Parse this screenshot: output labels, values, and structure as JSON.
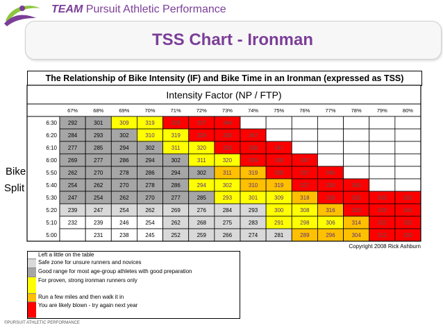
{
  "brand": {
    "team": "TEAM",
    "name": "Pursuit Athletic Performance"
  },
  "title": "TSS Chart - Ironman",
  "side_label": {
    "line1": "Bike",
    "line2": "Split"
  },
  "copyright": "Copyright 2008 Rick Ashburn",
  "footer": "©PURSUIT ATHLETIC PERFORMANCE",
  "colors": {
    "white": "#ffffff",
    "light_gray": "#d9d9d9",
    "gray": "#a6a6a6",
    "yellow": "#ffff00",
    "orange": "#ffc000",
    "red": "#ff0000",
    "brand": "#7b3e98"
  },
  "chart_data": {
    "type": "table",
    "title": "The Relationship of Bike Intensity (IF) and Bike Time in an Ironman (expressed as TSS)",
    "column_header": "Intensity Factor (NP / FTP)",
    "row_header": "Bike Split",
    "columns": [
      "67%",
      "68%",
      "69%",
      "70%",
      "71%",
      "72%",
      "73%",
      "74%",
      "75%",
      "76%",
      "77%",
      "78%",
      "79%",
      "80%"
    ],
    "rows": [
      {
        "time": "6:30",
        "values": [
          292,
          301,
          309,
          319,
          328,
          337,
          346,
          null,
          null,
          null,
          null,
          null,
          null,
          null
        ],
        "colors": [
          "gray",
          "gray",
          "yellow",
          "yellow",
          "red",
          "red",
          "red",
          "white",
          "white",
          "white",
          "white",
          "white",
          "white",
          "white"
        ]
      },
      {
        "time": "6:20",
        "values": [
          284,
          293,
          302,
          310,
          319,
          328,
          338,
          347,
          null,
          null,
          null,
          null,
          null,
          null
        ],
        "colors": [
          "gray",
          "gray",
          "gray",
          "yellow",
          "yellow",
          "red",
          "red",
          "red",
          "white",
          "white",
          "white",
          "white",
          "white",
          "white"
        ]
      },
      {
        "time": "6:10",
        "values": [
          277,
          285,
          294,
          302,
          311,
          320,
          329,
          338,
          347,
          null,
          null,
          null,
          null,
          null
        ],
        "colors": [
          "gray",
          "gray",
          "gray",
          "gray",
          "yellow",
          "yellow",
          "red",
          "red",
          "red",
          "white",
          "white",
          "white",
          "white",
          "white"
        ]
      },
      {
        "time": "6:00",
        "values": [
          269,
          277,
          286,
          294,
          302,
          311,
          320,
          329,
          338,
          347,
          null,
          null,
          null,
          null
        ],
        "colors": [
          "gray",
          "gray",
          "gray",
          "gray",
          "gray",
          "yellow",
          "yellow",
          "red",
          "red",
          "red",
          "white",
          "white",
          "white",
          "white"
        ]
      },
      {
        "time": "5:50",
        "values": [
          262,
          270,
          278,
          286,
          294,
          302,
          311,
          319,
          328,
          337,
          346,
          null,
          null,
          null
        ],
        "colors": [
          "gray",
          "gray",
          "gray",
          "gray",
          "gray",
          "gray",
          "orange",
          "orange",
          "red",
          "red",
          "red",
          "white",
          "white",
          "white"
        ]
      },
      {
        "time": "5:40",
        "values": [
          254,
          262,
          270,
          278,
          286,
          294,
          302,
          310,
          319,
          327,
          336,
          345,
          null,
          null
        ],
        "colors": [
          "gray",
          "gray",
          "gray",
          "gray",
          "gray",
          "yellow",
          "yellow",
          "orange",
          "orange",
          "red",
          "red",
          "red",
          "white",
          "white"
        ]
      },
      {
        "time": "5:30",
        "values": [
          247,
          254,
          262,
          270,
          277,
          285,
          293,
          301,
          309,
          318,
          326,
          335,
          343,
          352
        ],
        "colors": [
          "gray",
          "gray",
          "gray",
          "gray",
          "gray",
          "gray",
          "yellow",
          "yellow",
          "yellow",
          "orange",
          "red",
          "red",
          "red",
          "red"
        ]
      },
      {
        "time": "5:20",
        "values": [
          239,
          247,
          254,
          262,
          269,
          276,
          284,
          293,
          300,
          308,
          316,
          324,
          333,
          341
        ],
        "colors": [
          "light_gray",
          "light_gray",
          "light_gray",
          "light_gray",
          "light_gray",
          "light_gray",
          "light_gray",
          "light_gray",
          "yellow",
          "yellow",
          "orange",
          "red",
          "red",
          "red"
        ]
      },
      {
        "time": "5:10",
        "values": [
          232,
          239,
          246,
          254,
          262,
          268,
          275,
          283,
          291,
          298,
          306,
          314,
          322,
          331
        ],
        "colors": [
          "white",
          "white",
          "white",
          "white",
          "light_gray",
          "light_gray",
          "light_gray",
          "light_gray",
          "yellow",
          "yellow",
          "yellow",
          "orange",
          "red",
          "red"
        ]
      },
      {
        "time": "5:00",
        "values": [
          null,
          231,
          238,
          245,
          252,
          259,
          266,
          274,
          281,
          289,
          296,
          304,
          312,
          320
        ],
        "colors": [
          "white",
          "white",
          "white",
          "white",
          "light_gray",
          "light_gray",
          "light_gray",
          "light_gray",
          "light_gray",
          "orange",
          "orange",
          "orange",
          "red",
          "red"
        ]
      }
    ],
    "legend": [
      {
        "color": "white",
        "label": "Left a little on the table"
      },
      {
        "color": "light_gray",
        "label": "Safe zone for unsure runners and novices"
      },
      {
        "color": "gray",
        "label": "Good range for most age-group athletes with good preparation"
      },
      {
        "color": "yellow",
        "label": "For proven, strong ironman runners only"
      },
      {
        "color": "orange",
        "label": "Run a few miles and then walk it in"
      },
      {
        "color": "red",
        "label": "You are likely blown - try again next year"
      }
    ]
  }
}
